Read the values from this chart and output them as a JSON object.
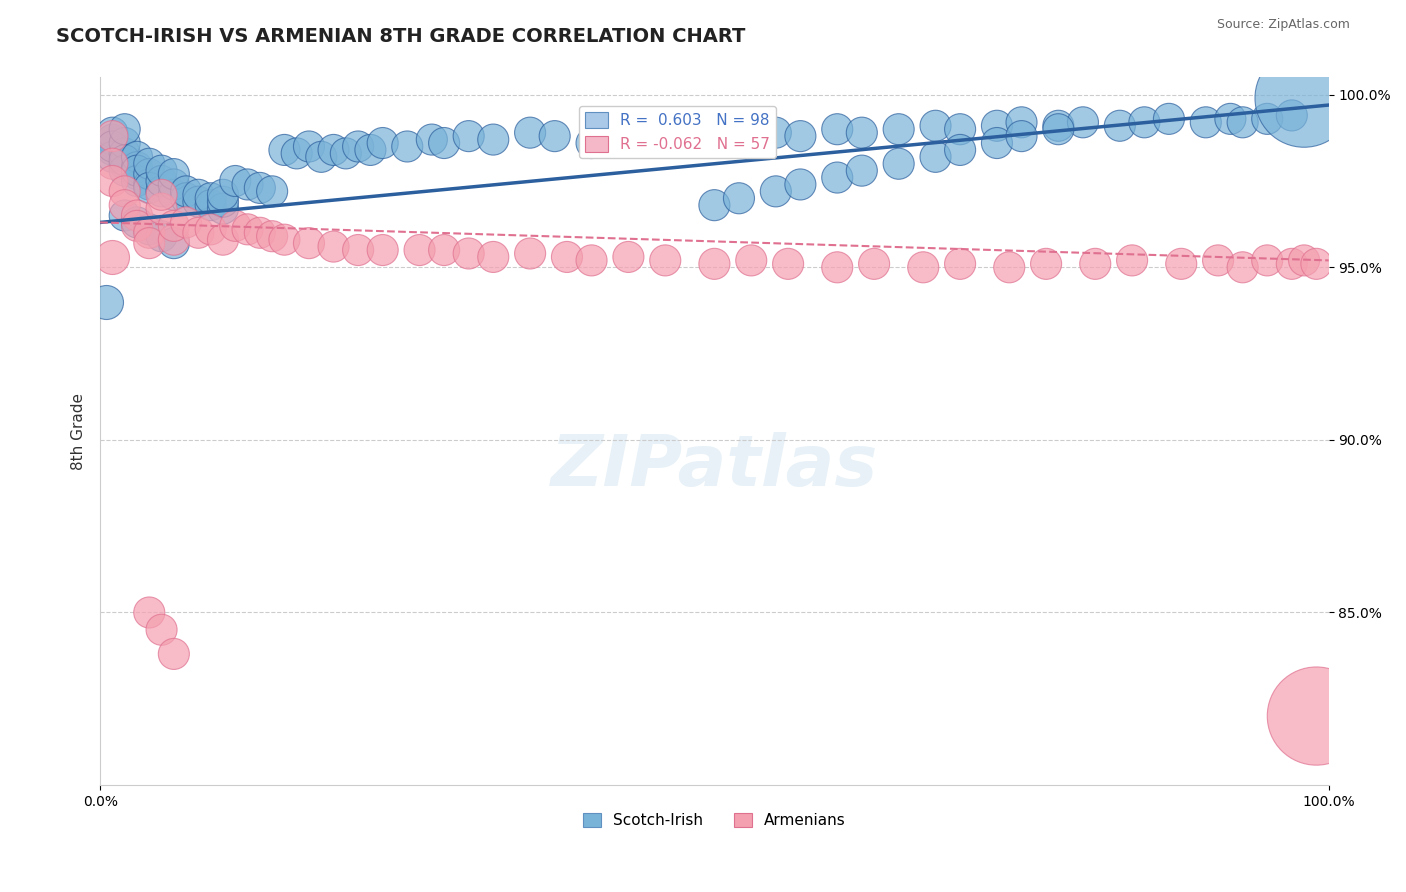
{
  "title": "SCOTCH-IRISH VS ARMENIAN 8TH GRADE CORRELATION CHART",
  "xlabel_bottom": "",
  "ylabel": "8th Grade",
  "source_text": "Source: ZipAtlas.com",
  "x_min": 0.0,
  "x_max": 1.0,
  "y_min": 0.8,
  "y_max": 1.005,
  "x_tick_labels": [
    "0.0%",
    "100.0%"
  ],
  "y_tick_labels": [
    "85.0%",
    "90.0%",
    "95.0%",
    "100.0%"
  ],
  "y_ticks": [
    0.85,
    0.9,
    0.95,
    1.0
  ],
  "legend_items": [
    {
      "label": "R =  0.603   N = 98",
      "color": "#6baed6"
    },
    {
      "label": "R = -0.062   N = 57",
      "color": "#f4a0b0"
    }
  ],
  "legend_labels_bottom": [
    "Scotch-Irish",
    "Armenians"
  ],
  "blue_color": "#7ab3d8",
  "pink_color": "#f4a0b0",
  "blue_line_color": "#2c5f9e",
  "pink_line_color": "#e07090",
  "watermark": "ZIPatlas",
  "R_blue": 0.603,
  "N_blue": 98,
  "R_pink": -0.062,
  "N_pink": 57,
  "blue_scatter": {
    "x": [
      0.01,
      0.01,
      0.01,
      0.01,
      0.01,
      0.02,
      0.02,
      0.02,
      0.02,
      0.02,
      0.02,
      0.03,
      0.03,
      0.03,
      0.03,
      0.03,
      0.04,
      0.04,
      0.04,
      0.04,
      0.05,
      0.05,
      0.05,
      0.06,
      0.06,
      0.06,
      0.07,
      0.07,
      0.08,
      0.08,
      0.09,
      0.09,
      0.1,
      0.1,
      0.1,
      0.11,
      0.12,
      0.13,
      0.14,
      0.15,
      0.16,
      0.17,
      0.18,
      0.19,
      0.2,
      0.21,
      0.22,
      0.23,
      0.25,
      0.27,
      0.28,
      0.3,
      0.32,
      0.35,
      0.37,
      0.4,
      0.42,
      0.45,
      0.47,
      0.5,
      0.52,
      0.55,
      0.57,
      0.6,
      0.62,
      0.65,
      0.68,
      0.7,
      0.73,
      0.75,
      0.78,
      0.8,
      0.83,
      0.85,
      0.87,
      0.9,
      0.92,
      0.93,
      0.95,
      0.97,
      0.02,
      0.03,
      0.04,
      0.05,
      0.06,
      0.5,
      0.52,
      0.55,
      0.57,
      0.6,
      0.62,
      0.65,
      0.68,
      0.7,
      0.73,
      0.75,
      0.78,
      0.98
    ],
    "y": [
      0.984,
      0.987,
      0.989,
      0.982,
      0.985,
      0.98,
      0.983,
      0.986,
      0.978,
      0.981,
      0.99,
      0.977,
      0.979,
      0.982,
      0.975,
      0.978,
      0.974,
      0.977,
      0.98,
      0.973,
      0.972,
      0.975,
      0.978,
      0.971,
      0.974,
      0.977,
      0.97,
      0.972,
      0.969,
      0.971,
      0.968,
      0.97,
      0.967,
      0.969,
      0.971,
      0.975,
      0.974,
      0.973,
      0.972,
      0.984,
      0.983,
      0.985,
      0.982,
      0.984,
      0.983,
      0.985,
      0.984,
      0.986,
      0.985,
      0.987,
      0.986,
      0.988,
      0.987,
      0.989,
      0.988,
      0.986,
      0.987,
      0.988,
      0.987,
      0.989,
      0.988,
      0.989,
      0.988,
      0.99,
      0.989,
      0.99,
      0.991,
      0.99,
      0.991,
      0.992,
      0.991,
      0.992,
      0.991,
      0.992,
      0.993,
      0.992,
      0.993,
      0.992,
      0.993,
      0.994,
      0.965,
      0.963,
      0.961,
      0.959,
      0.957,
      0.968,
      0.97,
      0.972,
      0.974,
      0.976,
      0.978,
      0.98,
      0.982,
      0.984,
      0.986,
      0.988,
      0.99,
      0.999
    ],
    "sizes": [
      20,
      20,
      20,
      20,
      20,
      20,
      20,
      20,
      20,
      20,
      20,
      20,
      20,
      20,
      20,
      20,
      20,
      20,
      20,
      20,
      20,
      20,
      20,
      20,
      20,
      20,
      20,
      20,
      20,
      20,
      20,
      20,
      20,
      20,
      20,
      20,
      20,
      20,
      20,
      20,
      20,
      20,
      20,
      20,
      20,
      20,
      20,
      20,
      20,
      20,
      20,
      20,
      20,
      20,
      20,
      20,
      20,
      20,
      20,
      20,
      20,
      20,
      20,
      20,
      20,
      20,
      20,
      20,
      20,
      20,
      20,
      20,
      20,
      20,
      20,
      20,
      20,
      20,
      20,
      20,
      20,
      20,
      20,
      20,
      20,
      20,
      20,
      20,
      20,
      20,
      20,
      20,
      20,
      20,
      20,
      20,
      20,
      200
    ]
  },
  "pink_scatter": {
    "x": [
      0.01,
      0.01,
      0.01,
      0.02,
      0.02,
      0.03,
      0.03,
      0.04,
      0.04,
      0.05,
      0.05,
      0.06,
      0.06,
      0.07,
      0.08,
      0.09,
      0.1,
      0.11,
      0.12,
      0.13,
      0.14,
      0.15,
      0.17,
      0.19,
      0.21,
      0.23,
      0.26,
      0.28,
      0.3,
      0.32,
      0.35,
      0.38,
      0.4,
      0.43,
      0.46,
      0.5,
      0.53,
      0.56,
      0.6,
      0.63,
      0.67,
      0.7,
      0.74,
      0.77,
      0.81,
      0.84,
      0.88,
      0.91,
      0.93,
      0.95,
      0.97,
      0.98,
      0.99,
      0.04,
      0.05,
      0.06,
      0.99
    ],
    "y": [
      0.988,
      0.98,
      0.975,
      0.972,
      0.968,
      0.965,
      0.962,
      0.96,
      0.957,
      0.967,
      0.971,
      0.958,
      0.962,
      0.963,
      0.96,
      0.961,
      0.958,
      0.962,
      0.961,
      0.96,
      0.959,
      0.958,
      0.957,
      0.956,
      0.955,
      0.955,
      0.955,
      0.955,
      0.954,
      0.953,
      0.954,
      0.953,
      0.952,
      0.953,
      0.952,
      0.951,
      0.952,
      0.951,
      0.95,
      0.951,
      0.95,
      0.951,
      0.95,
      0.951,
      0.951,
      0.952,
      0.951,
      0.952,
      0.95,
      0.952,
      0.951,
      0.952,
      0.951,
      0.85,
      0.845,
      0.838,
      0.82
    ],
    "sizes": [
      20,
      20,
      20,
      20,
      20,
      20,
      20,
      20,
      20,
      20,
      20,
      20,
      20,
      20,
      20,
      20,
      20,
      20,
      20,
      20,
      20,
      20,
      20,
      20,
      20,
      20,
      20,
      20,
      20,
      20,
      20,
      20,
      20,
      20,
      20,
      20,
      20,
      20,
      20,
      20,
      20,
      20,
      20,
      20,
      20,
      20,
      20,
      20,
      20,
      20,
      20,
      20,
      20,
      20,
      20,
      20,
      200
    ]
  }
}
